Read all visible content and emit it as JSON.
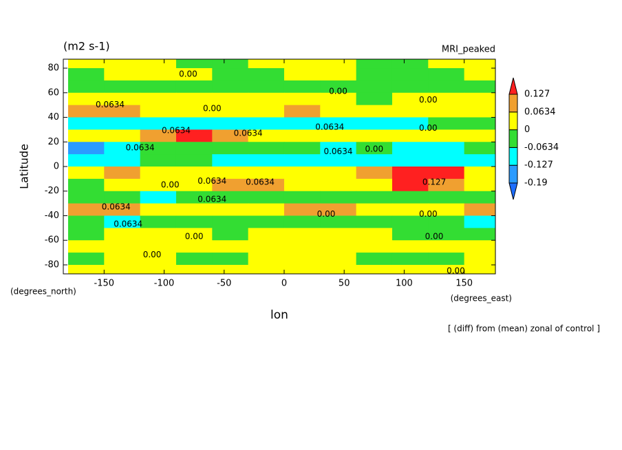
{
  "chart_data": {
    "type": "contour",
    "title": "(m2 s-1)",
    "subtitle": "MRI_peaked",
    "y_label": "Latitude",
    "x_label": "lon",
    "y_units": "(degrees_north)",
    "x_units": "(degrees_east)",
    "footnote": "[ (diff) from (mean) zonal of control ]",
    "xlim": [
      -184,
      176
    ],
    "ylim": [
      -87.3,
      87.3
    ],
    "xticks": [
      -150,
      -100,
      -50,
      0,
      50,
      100,
      150
    ],
    "yticks": [
      80,
      60,
      40,
      20,
      0,
      -20,
      -40,
      -60,
      -80
    ],
    "x": [
      -165,
      -135,
      -105,
      -75,
      -45,
      -15,
      15,
      45,
      75,
      105,
      135,
      165
    ],
    "y": [
      85,
      75,
      65,
      55,
      45,
      35,
      25,
      15,
      5,
      -5,
      -15,
      -25,
      -35,
      -45,
      -55,
      -65,
      -75,
      -85
    ],
    "values": [
      [
        0.03,
        0.03,
        0.02,
        -0.02,
        -0.02,
        0.02,
        0.03,
        0.02,
        -0.02,
        -0.02,
        0.02,
        0.03
      ],
      [
        -0.02,
        0.02,
        0.03,
        0.02,
        -0.02,
        -0.02,
        0.02,
        0.02,
        -0.03,
        -0.02,
        -0.02,
        0.02
      ],
      [
        -0.03,
        -0.02,
        -0.03,
        -0.02,
        -0.02,
        -0.03,
        -0.02,
        -0.03,
        -0.02,
        -0.03,
        -0.03,
        -0.02
      ],
      [
        0.03,
        0.04,
        0.03,
        0.02,
        0.03,
        0.02,
        0.03,
        0.04,
        -0.02,
        0.02,
        0.03,
        0.02
      ],
      [
        0.09,
        0.07,
        0.04,
        0.05,
        0.03,
        0.04,
        0.08,
        0.05,
        0.03,
        0.02,
        0.04,
        0.05
      ],
      [
        -0.08,
        -0.07,
        -0.09,
        -0.07,
        -0.08,
        -0.07,
        -0.08,
        -0.09,
        -0.08,
        -0.07,
        -0.05,
        -0.04
      ],
      [
        0.03,
        0.04,
        0.08,
        0.14,
        0.09,
        0.05,
        0.04,
        0.03,
        0.04,
        0.03,
        0.04,
        0.03
      ],
      [
        -0.14,
        -0.09,
        -0.04,
        -0.03,
        -0.05,
        -0.03,
        -0.04,
        -0.08,
        -0.06,
        -0.09,
        -0.08,
        -0.04
      ],
      [
        -0.07,
        -0.08,
        -0.03,
        -0.04,
        -0.09,
        -0.08,
        -0.07,
        -0.08,
        -0.09,
        -0.08,
        -0.07,
        -0.09
      ],
      [
        0.05,
        0.08,
        0.06,
        0.04,
        0.05,
        0.04,
        0.03,
        0.06,
        0.09,
        0.14,
        0.13,
        0.06
      ],
      [
        -0.03,
        0.03,
        0.04,
        0.05,
        0.08,
        0.09,
        0.04,
        0.03,
        0.06,
        0.13,
        0.09,
        0.05
      ],
      [
        -0.02,
        -0.04,
        -0.07,
        -0.05,
        -0.03,
        -0.02,
        -0.02,
        -0.03,
        -0.02,
        -0.03,
        -0.02,
        -0.03
      ],
      [
        0.09,
        0.08,
        0.05,
        0.04,
        0.06,
        0.05,
        0.07,
        0.09,
        0.05,
        0.04,
        0.06,
        0.08
      ],
      [
        -0.06,
        -0.08,
        -0.05,
        -0.04,
        -0.03,
        -0.04,
        -0.03,
        -0.05,
        -0.04,
        -0.05,
        -0.06,
        -0.07
      ],
      [
        -0.02,
        0.02,
        0.03,
        0.02,
        -0.02,
        0.02,
        0.03,
        0.02,
        0.02,
        -0.02,
        -0.02,
        -0.02
      ],
      [
        0.02,
        0.03,
        0.03,
        0.04,
        0.03,
        0.02,
        0.03,
        0.04,
        0.03,
        0.02,
        0.03,
        0.02
      ],
      [
        -0.02,
        0.02,
        0.03,
        -0.02,
        -0.02,
        0.03,
        0.03,
        0.03,
        -0.02,
        -0.02,
        -0.02,
        0.02
      ],
      [
        0.02,
        0.03,
        0.03,
        0.03,
        0.03,
        0.03,
        0.03,
        0.03,
        0.03,
        0.03,
        0.02,
        0.03
      ]
    ],
    "colorbar": {
      "levels": [
        -0.19,
        -0.127,
        -0.0634,
        0,
        0.0634,
        0.127
      ],
      "level_labels": [
        "-0.19",
        "-0.127",
        "-0.0634",
        "0",
        "0.0634",
        "0.127"
      ],
      "colors": [
        "#1e6eff",
        "#2b9bff",
        "#00ffff",
        "#33dd33",
        "#ffff00",
        "#f0a030",
        "#ff2020"
      ]
    },
    "contour_labels": [
      {
        "text": "0.00",
        "lon": -80,
        "lat": 75
      },
      {
        "text": "0.00",
        "lon": 45,
        "lat": 61
      },
      {
        "text": "0.00",
        "lon": 120,
        "lat": 54
      },
      {
        "text": "0.0634",
        "lon": -145,
        "lat": 50
      },
      {
        "text": "0.00",
        "lon": -60,
        "lat": 47
      },
      {
        "text": "0.0634",
        "lon": -90,
        "lat": 29
      },
      {
        "text": "0.0634",
        "lon": -30,
        "lat": 27
      },
      {
        "text": "0.0634",
        "lon": 38,
        "lat": 32
      },
      {
        "text": "0.00",
        "lon": 120,
        "lat": 31
      },
      {
        "text": "0.0634",
        "lon": -120,
        "lat": 15
      },
      {
        "text": "0.0634",
        "lon": 45,
        "lat": 12
      },
      {
        "text": "0.00",
        "lon": 75,
        "lat": 14
      },
      {
        "text": "0.00",
        "lon": -95,
        "lat": -15
      },
      {
        "text": "0.0634",
        "lon": -60,
        "lat": -12
      },
      {
        "text": "0.0634",
        "lon": -20,
        "lat": -13
      },
      {
        "text": "0.127",
        "lon": 125,
        "lat": -13
      },
      {
        "text": "0.0634",
        "lon": -60,
        "lat": -27
      },
      {
        "text": "0.0634",
        "lon": -140,
        "lat": -33
      },
      {
        "text": "0.00",
        "lon": 35,
        "lat": -39
      },
      {
        "text": "0.0634",
        "lon": -130,
        "lat": -47
      },
      {
        "text": "0.00",
        "lon": 120,
        "lat": -39
      },
      {
        "text": "0.00",
        "lon": -75,
        "lat": -57
      },
      {
        "text": "0.00",
        "lon": 125,
        "lat": -57
      },
      {
        "text": "0.00",
        "lon": -110,
        "lat": -72
      },
      {
        "text": "0.00",
        "lon": 143,
        "lat": -85
      }
    ]
  }
}
